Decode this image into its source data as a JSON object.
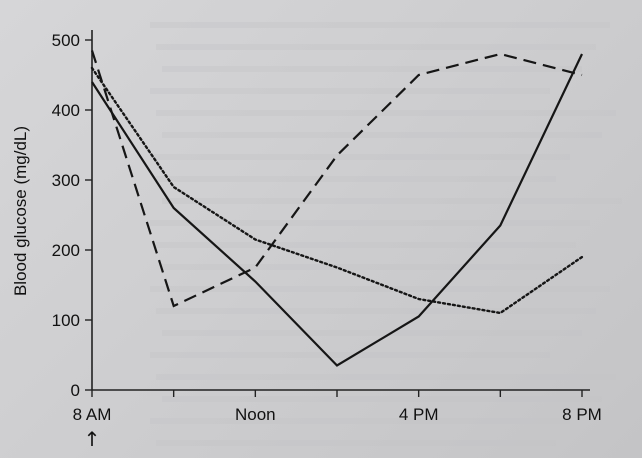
{
  "chart_data": {
    "type": "line",
    "title": "",
    "xlabel": "",
    "ylabel": "Blood glucose (mg/dL)",
    "x_hours": [
      8,
      10,
      12,
      14,
      16,
      18,
      20
    ],
    "x_tick_positions": [
      8,
      12,
      16,
      20
    ],
    "x_tick_labels": [
      "8 AM",
      "Noon",
      "4 PM",
      "8 PM"
    ],
    "xlim": [
      8,
      20
    ],
    "ylim": [
      0,
      500
    ],
    "y_ticks": [
      0,
      100,
      200,
      300,
      400,
      500
    ],
    "grid": false,
    "legend": "none",
    "annotation": "↑",
    "series": [
      {
        "style": "solid",
        "x": [
          8,
          10,
          12,
          14,
          16,
          18,
          20
        ],
        "y": [
          440,
          260,
          155,
          35,
          105,
          235,
          480
        ]
      },
      {
        "style": "dashed",
        "x": [
          8,
          10,
          12,
          14,
          16,
          18,
          20
        ],
        "y": [
          485,
          120,
          175,
          335,
          450,
          480,
          450
        ]
      },
      {
        "style": "dotted",
        "x": [
          8,
          10,
          12,
          14,
          16,
          18,
          20
        ],
        "y": [
          460,
          290,
          215,
          175,
          130,
          110,
          190
        ]
      }
    ]
  }
}
